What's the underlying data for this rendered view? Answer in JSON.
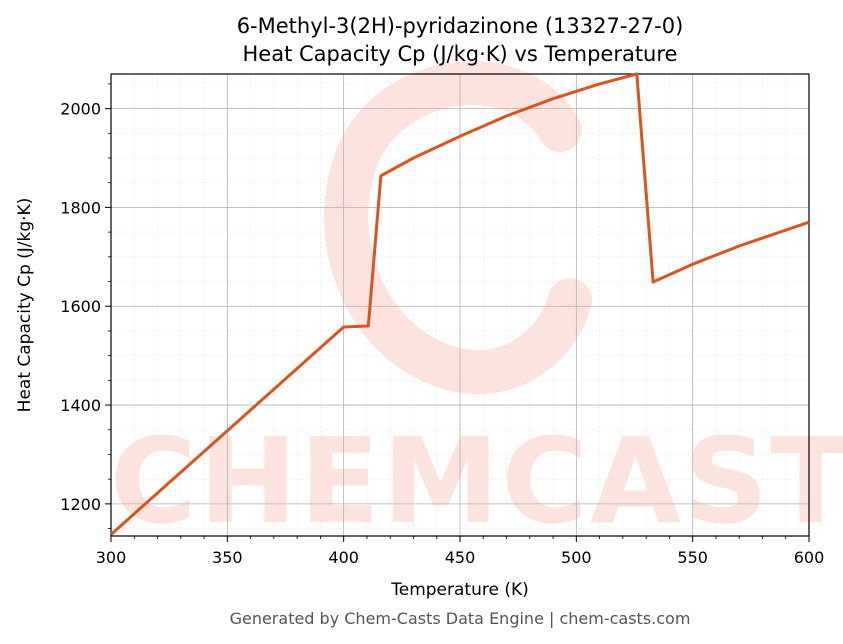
{
  "chart_data": {
    "type": "line",
    "title": "6-Methyl-3(2H)-pyridazinone (13327-27-0)",
    "subtitle": "Heat Capacity Cp (J/kg·K) vs Temperature",
    "xlabel": "Temperature (K)",
    "ylabel": "Heat Capacity Cp (J/kg·K)",
    "xlim": [
      300,
      600
    ],
    "ylim": [
      1135,
      2070
    ],
    "xticks": [
      300,
      350,
      400,
      450,
      500,
      550,
      600
    ],
    "yticks": [
      1200,
      1400,
      1600,
      1800,
      2000
    ],
    "grid": true,
    "line_color": "#d9541e",
    "series": [
      {
        "x": [
          300,
          320,
          340,
          360,
          380,
          400,
          410.6,
          416,
          430,
          450,
          470,
          490,
          510,
          526,
          533,
          550,
          570,
          600
        ],
        "y": [
          1138,
          1222,
          1306,
          1390,
          1474,
          1558,
          1560,
          1864,
          1900,
          1944,
          1985,
          2020,
          2050,
          2070,
          1649,
          1685,
          1722,
          1770
        ]
      }
    ]
  },
  "watermark": "CHEMCASTS",
  "footer": "Generated by Chem-Casts Data Engine | chem-casts.com"
}
